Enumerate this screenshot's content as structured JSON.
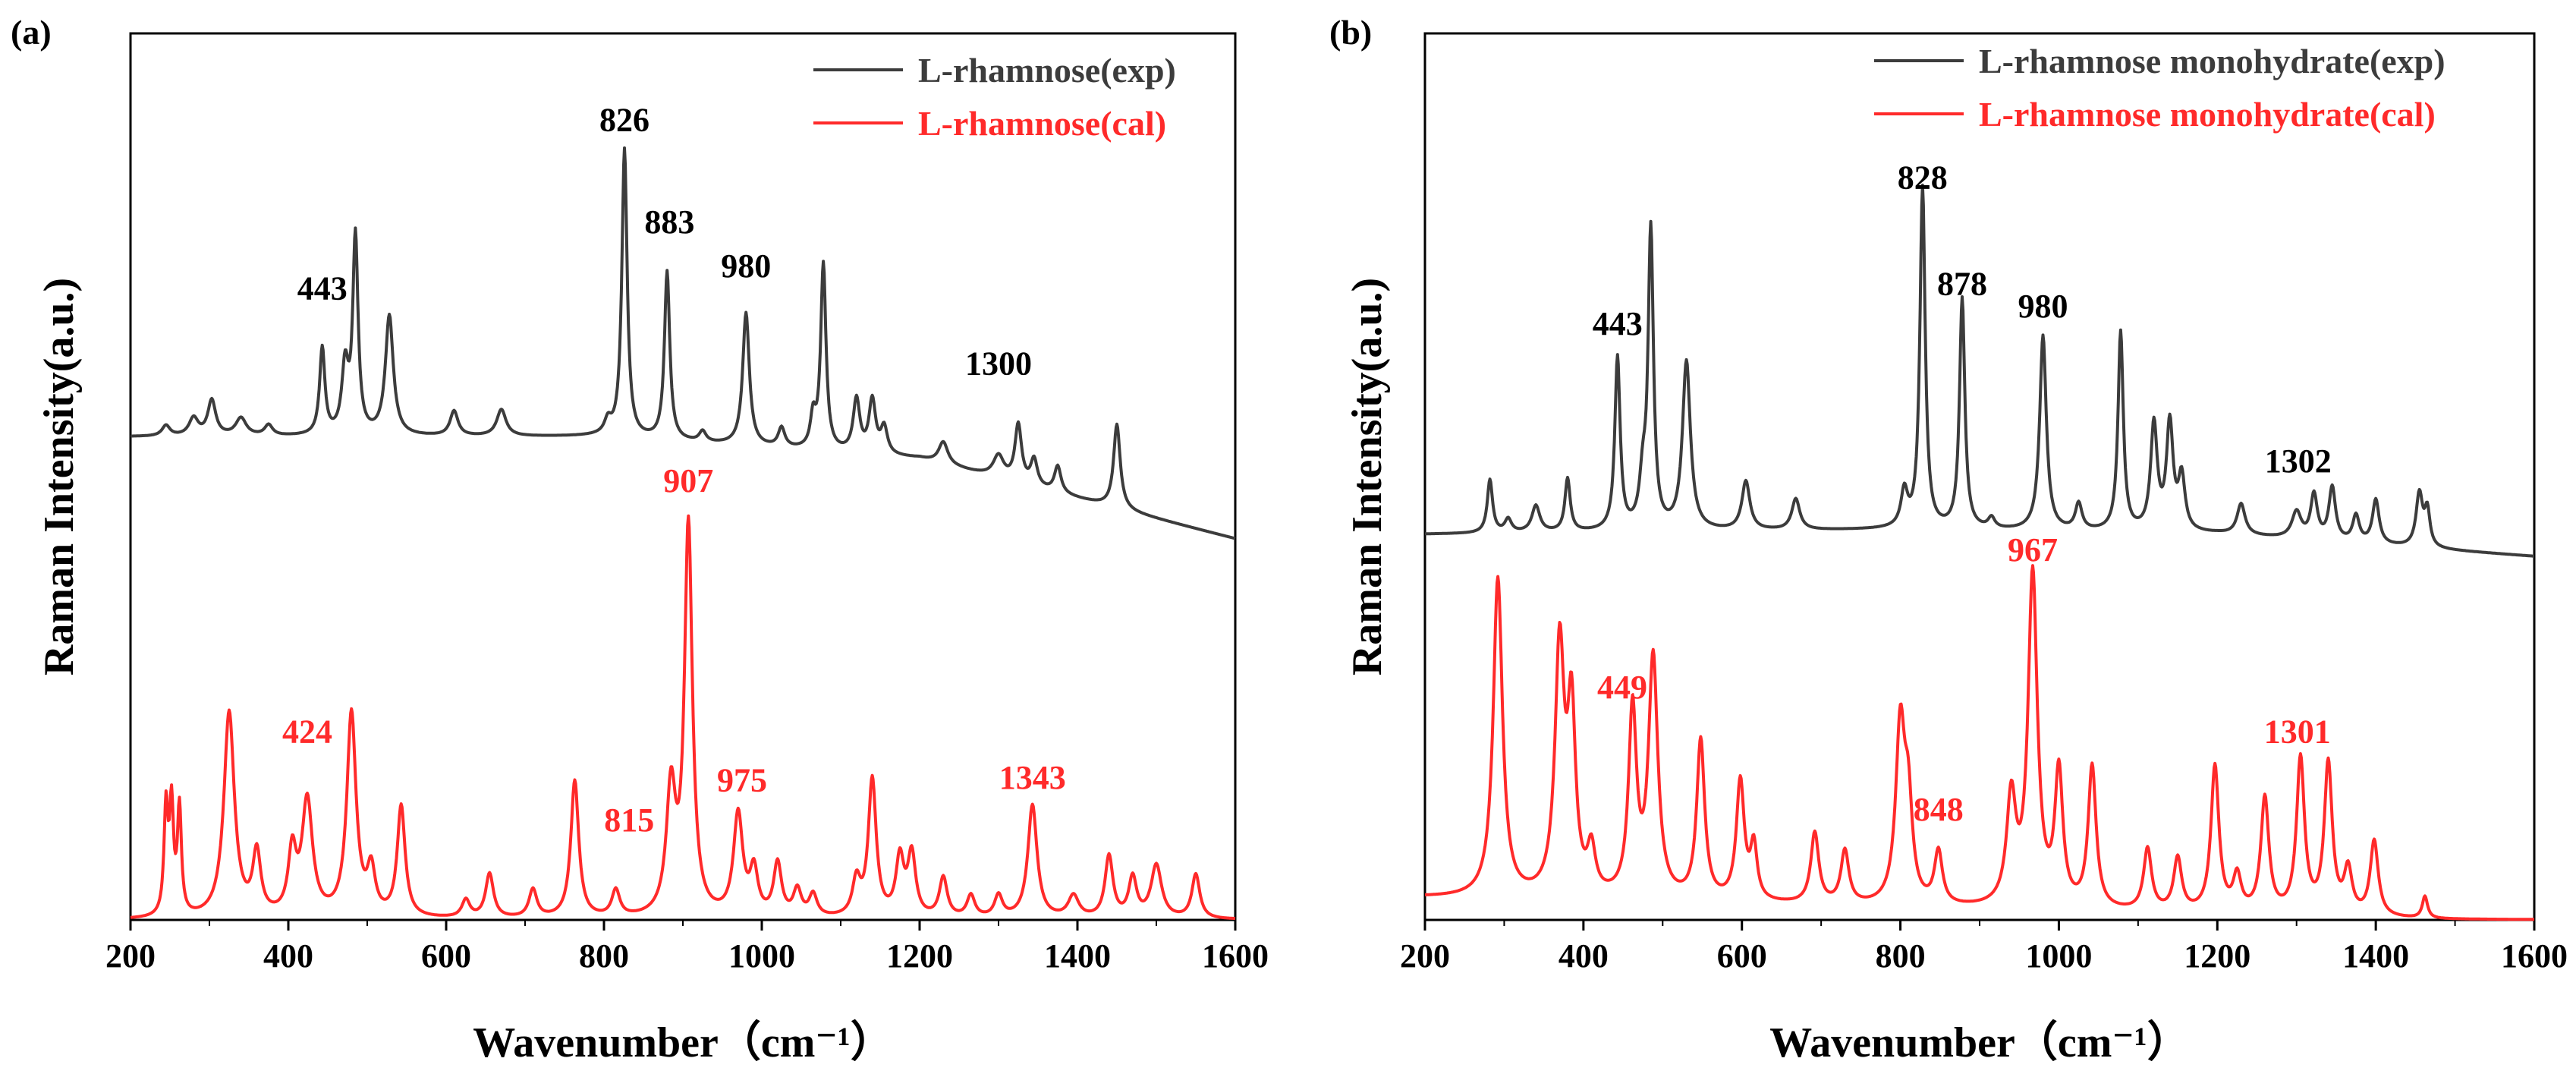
{
  "colors": {
    "exp": "#3c3c3c",
    "cal": "#ff2a2a"
  },
  "chart_data": [
    {
      "type": "line",
      "panel_label": "(a)",
      "xlabel": "Wavenumber（cm⁻¹）",
      "ylabel": "Raman Intensity(a.u.)",
      "xlim": [
        200,
        1600
      ],
      "ylim": [
        0,
        1
      ],
      "xticks": [
        "200",
        "400",
        "600",
        "800",
        "1000",
        "1200",
        "1400",
        "1600"
      ],
      "xtick_values": [
        200,
        400,
        600,
        800,
        1000,
        1200,
        1400,
        1600
      ],
      "legend_position": "top-right",
      "series": [
        {
          "name": "L-rhamnose(exp)",
          "color": "#3c3c3c",
          "baseline": [
            [
              200,
              0.545
            ],
            [
              800,
              0.545
            ],
            [
              1200,
              0.52
            ],
            [
              1600,
              0.43
            ]
          ],
          "peaks": [
            [
              245,
              0.012,
              6
            ],
            [
              280,
              0.02,
              7
            ],
            [
              303,
              0.04,
              6
            ],
            [
              340,
              0.02,
              8
            ],
            [
              375,
              0.012,
              6
            ],
            [
              443,
              0.098,
              4
            ],
            [
              472,
              0.075,
              5
            ],
            [
              485,
              0.222,
              4
            ],
            [
              528,
              0.135,
              6
            ],
            [
              610,
              0.028,
              6
            ],
            [
              670,
              0.03,
              7
            ],
            [
              805,
              0.015,
              5
            ],
            [
              826,
              0.325,
              4
            ],
            [
              880,
              0.19,
              4
            ],
            [
              925,
              0.012,
              5
            ],
            [
              980,
              0.15,
              5
            ],
            [
              1025,
              0.022,
              5
            ],
            [
              1065,
              0.035,
              4
            ],
            [
              1078,
              0.21,
              4
            ],
            [
              1120,
              0.06,
              5
            ],
            [
              1140,
              0.06,
              5
            ],
            [
              1155,
              0.03,
              5
            ],
            [
              1230,
              0.025,
              7
            ],
            [
              1300,
              0.025,
              8
            ],
            [
              1325,
              0.065,
              5
            ],
            [
              1345,
              0.03,
              5
            ],
            [
              1375,
              0.03,
              5
            ],
            [
              1450,
              0.095,
              5
            ]
          ],
          "labels": [
            {
              "text": "443",
              "x": 443,
              "y": 0.7
            },
            {
              "text": "826",
              "x": 826,
              "y": 0.89
            },
            {
              "text": "883",
              "x": 883,
              "y": 0.775
            },
            {
              "text": "980",
              "x": 980,
              "y": 0.725
            },
            {
              "text": "1300",
              "x": 1300,
              "y": 0.615
            }
          ]
        },
        {
          "name": "L-rhamnose(cal)",
          "color": "#ff2a2a",
          "baseline": [
            [
              200,
              0.0
            ],
            [
              1600,
              0.0
            ]
          ],
          "peaks": [
            [
              245,
              0.12,
              3
            ],
            [
              252,
              0.12,
              3
            ],
            [
              262,
              0.12,
              3
            ],
            [
              325,
              0.232,
              8
            ],
            [
              360,
              0.07,
              6
            ],
            [
              405,
              0.07,
              6
            ],
            [
              424,
              0.13,
              8
            ],
            [
              480,
              0.23,
              7
            ],
            [
              505,
              0.05,
              6
            ],
            [
              543,
              0.125,
              6
            ],
            [
              625,
              0.02,
              6
            ],
            [
              655,
              0.05,
              6
            ],
            [
              710,
              0.032,
              6
            ],
            [
              763,
              0.155,
              6
            ],
            [
              815,
              0.03,
              6
            ],
            [
              885,
              0.14,
              7
            ],
            [
              907,
              0.44,
              6
            ],
            [
              970,
              0.115,
              7
            ],
            [
              990,
              0.05,
              6
            ],
            [
              1020,
              0.06,
              6
            ],
            [
              1045,
              0.03,
              6
            ],
            [
              1065,
              0.025,
              6
            ],
            [
              1120,
              0.04,
              6
            ],
            [
              1140,
              0.155,
              6
            ],
            [
              1175,
              0.065,
              6
            ],
            [
              1190,
              0.07,
              6
            ],
            [
              1230,
              0.045,
              6
            ],
            [
              1265,
              0.025,
              6
            ],
            [
              1300,
              0.025,
              6
            ],
            [
              1343,
              0.128,
              7
            ],
            [
              1395,
              0.025,
              8
            ],
            [
              1440,
              0.07,
              6
            ],
            [
              1470,
              0.045,
              6
            ],
            [
              1500,
              0.06,
              8
            ],
            [
              1550,
              0.05,
              6
            ]
          ],
          "labels": [
            {
              "text": "424",
              "x": 424,
              "y": 0.2
            },
            {
              "text": "815",
              "x": 832,
              "y": 0.1
            },
            {
              "text": "907",
              "x": 907,
              "y": 0.483
            },
            {
              "text": "975",
              "x": 975,
              "y": 0.145
            },
            {
              "text": "1343",
              "x": 1343,
              "y": 0.148
            }
          ]
        }
      ]
    },
    {
      "type": "line",
      "panel_label": "(b)",
      "xlabel": "Wavenumber（cm⁻¹）",
      "ylabel": "Raman Intensity(a.u.)",
      "xlim": [
        200,
        1600
      ],
      "ylim": [
        0,
        1
      ],
      "xticks": [
        "200",
        "400",
        "600",
        "800",
        "1000",
        "1200",
        "1400",
        "1600"
      ],
      "xtick_values": [
        200,
        400,
        600,
        800,
        1000,
        1200,
        1400,
        1600
      ],
      "legend_position": "top-right",
      "series": [
        {
          "name": "L-rhamnose monohydrate(exp)",
          "color": "#3c3c3c",
          "baseline": [
            [
              200,
              0.435
            ],
            [
              800,
              0.44
            ],
            [
              1200,
              0.435
            ],
            [
              1600,
              0.41
            ]
          ],
          "peaks": [
            [
              282,
              0.06,
              4
            ],
            [
              305,
              0.015,
              5
            ],
            [
              340,
              0.03,
              6
            ],
            [
              380,
              0.06,
              4
            ],
            [
              443,
              0.195,
              4
            ],
            [
              475,
              0.05,
              5
            ],
            [
              485,
              0.335,
              4
            ],
            [
              530,
              0.19,
              6
            ],
            [
              605,
              0.055,
              6
            ],
            [
              668,
              0.035,
              6
            ],
            [
              805,
              0.04,
              5
            ],
            [
              828,
              0.385,
              4
            ],
            [
              878,
              0.26,
              4
            ],
            [
              915,
              0.012,
              5
            ],
            [
              980,
              0.22,
              5
            ],
            [
              1025,
              0.03,
              5
            ],
            [
              1078,
              0.225,
              4
            ],
            [
              1120,
              0.12,
              5
            ],
            [
              1140,
              0.12,
              5
            ],
            [
              1155,
              0.06,
              5
            ],
            [
              1230,
              0.035,
              6
            ],
            [
              1300,
              0.03,
              7
            ],
            [
              1322,
              0.05,
              5
            ],
            [
              1345,
              0.06,
              5
            ],
            [
              1375,
              0.03,
              5
            ],
            [
              1400,
              0.05,
              5
            ],
            [
              1455,
              0.06,
              5
            ],
            [
              1465,
              0.04,
              4
            ]
          ],
          "labels": [
            {
              "text": "443",
              "x": 443,
              "y": 0.66
            },
            {
              "text": "828",
              "x": 828,
              "y": 0.825
            },
            {
              "text": "878",
              "x": 878,
              "y": 0.705
            },
            {
              "text": "980",
              "x": 980,
              "y": 0.68
            },
            {
              "text": "1302",
              "x": 1302,
              "y": 0.505
            }
          ]
        },
        {
          "name": "L-rhamnose monohydrate(cal)",
          "color": "#ff2a2a",
          "baseline": [
            [
              200,
              0.025
            ],
            [
              1460,
              0.0
            ],
            [
              1600,
              0.0
            ]
          ],
          "peaks": [
            [
              292,
              0.36,
              7
            ],
            [
              370,
              0.28,
              7
            ],
            [
              385,
              0.2,
              6
            ],
            [
              410,
              0.05,
              6
            ],
            [
              462,
              0.21,
              6
            ],
            [
              488,
              0.27,
              7
            ],
            [
              548,
              0.18,
              6
            ],
            [
              598,
              0.135,
              6
            ],
            [
              615,
              0.06,
              5
            ],
            [
              692,
              0.08,
              6
            ],
            [
              730,
              0.06,
              6
            ],
            [
              800,
              0.2,
              7
            ],
            [
              810,
              0.1,
              6
            ],
            [
              848,
              0.06,
              6
            ],
            [
              940,
              0.12,
              7
            ],
            [
              967,
              0.375,
              7
            ],
            [
              1000,
              0.15,
              6
            ],
            [
              1042,
              0.16,
              6
            ],
            [
              1112,
              0.07,
              6
            ],
            [
              1150,
              0.06,
              6
            ],
            [
              1197,
              0.165,
              6
            ],
            [
              1225,
              0.04,
              6
            ],
            [
              1260,
              0.13,
              6
            ],
            [
              1305,
              0.175,
              6
            ],
            [
              1340,
              0.17,
              6
            ],
            [
              1365,
              0.05,
              6
            ],
            [
              1398,
              0.085,
              6
            ],
            [
              1462,
              0.025,
              4
            ]
          ],
          "labels": [
            {
              "text": "449",
              "x": 449,
              "y": 0.25
            },
            {
              "text": "848",
              "x": 848,
              "y": 0.112
            },
            {
              "text": "967",
              "x": 967,
              "y": 0.405
            },
            {
              "text": "1301",
              "x": 1301,
              "y": 0.2
            }
          ]
        }
      ]
    }
  ]
}
